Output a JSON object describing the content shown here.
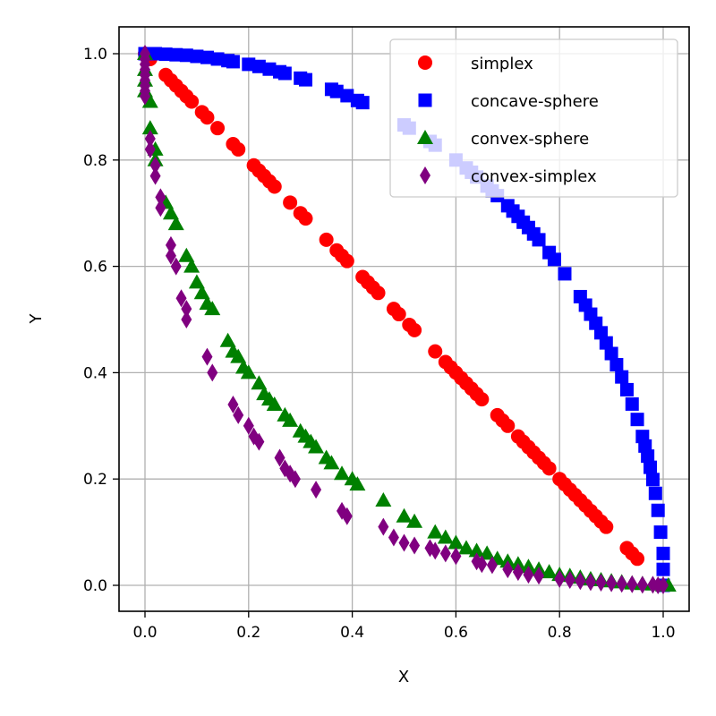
{
  "chart_data": {
    "type": "scatter",
    "title": "",
    "xlabel": "X",
    "ylabel": "Y",
    "xlim": [
      -0.05,
      1.05
    ],
    "ylim": [
      -0.05,
      1.05
    ],
    "grid": true,
    "legend_position": "upper right",
    "xticks": [
      "0.0",
      "0.2",
      "0.4",
      "0.6",
      "0.8",
      "1.0"
    ],
    "yticks": [
      "0.0",
      "0.2",
      "0.4",
      "0.6",
      "0.8",
      "1.0"
    ],
    "series": [
      {
        "name": "simplex",
        "marker": "circle",
        "color": "#ff0000",
        "points": [
          [
            0.0,
            1.0
          ],
          [
            0.01,
            0.99
          ],
          [
            0.04,
            0.96
          ],
          [
            0.05,
            0.95
          ],
          [
            0.06,
            0.94
          ],
          [
            0.07,
            0.93
          ],
          [
            0.08,
            0.92
          ],
          [
            0.09,
            0.91
          ],
          [
            0.11,
            0.89
          ],
          [
            0.12,
            0.88
          ],
          [
            0.14,
            0.86
          ],
          [
            0.17,
            0.83
          ],
          [
            0.18,
            0.82
          ],
          [
            0.21,
            0.79
          ],
          [
            0.22,
            0.78
          ],
          [
            0.23,
            0.77
          ],
          [
            0.24,
            0.76
          ],
          [
            0.25,
            0.75
          ],
          [
            0.28,
            0.72
          ],
          [
            0.3,
            0.7
          ],
          [
            0.31,
            0.69
          ],
          [
            0.35,
            0.65
          ],
          [
            0.37,
            0.63
          ],
          [
            0.38,
            0.62
          ],
          [
            0.39,
            0.61
          ],
          [
            0.42,
            0.58
          ],
          [
            0.43,
            0.57
          ],
          [
            0.44,
            0.56
          ],
          [
            0.45,
            0.55
          ],
          [
            0.48,
            0.52
          ],
          [
            0.49,
            0.51
          ],
          [
            0.51,
            0.49
          ],
          [
            0.52,
            0.48
          ],
          [
            0.56,
            0.44
          ],
          [
            0.58,
            0.42
          ],
          [
            0.59,
            0.41
          ],
          [
            0.6,
            0.4
          ],
          [
            0.61,
            0.39
          ],
          [
            0.62,
            0.38
          ],
          [
            0.63,
            0.37
          ],
          [
            0.64,
            0.36
          ],
          [
            0.65,
            0.35
          ],
          [
            0.68,
            0.32
          ],
          [
            0.69,
            0.31
          ],
          [
            0.7,
            0.3
          ],
          [
            0.72,
            0.28
          ],
          [
            0.73,
            0.27
          ],
          [
            0.74,
            0.26
          ],
          [
            0.75,
            0.25
          ],
          [
            0.76,
            0.24
          ],
          [
            0.77,
            0.23
          ],
          [
            0.78,
            0.22
          ],
          [
            0.8,
            0.2
          ],
          [
            0.81,
            0.19
          ],
          [
            0.82,
            0.18
          ],
          [
            0.83,
            0.17
          ],
          [
            0.84,
            0.16
          ],
          [
            0.85,
            0.15
          ],
          [
            0.86,
            0.14
          ],
          [
            0.87,
            0.13
          ],
          [
            0.88,
            0.12
          ],
          [
            0.89,
            0.11
          ],
          [
            0.93,
            0.07
          ],
          [
            0.94,
            0.06
          ],
          [
            0.95,
            0.05
          ]
        ]
      },
      {
        "name": "concave-sphere",
        "marker": "square",
        "color": "#0000ff",
        "points": [
          [
            0.0,
            1.0
          ],
          [
            0.02,
            1.0
          ],
          [
            0.04,
            0.999
          ],
          [
            0.06,
            0.998
          ],
          [
            0.08,
            0.997
          ],
          [
            0.1,
            0.995
          ],
          [
            0.12,
            0.993
          ],
          [
            0.14,
            0.99
          ],
          [
            0.16,
            0.987
          ],
          [
            0.17,
            0.985
          ],
          [
            0.2,
            0.98
          ],
          [
            0.22,
            0.976
          ],
          [
            0.24,
            0.971
          ],
          [
            0.26,
            0.966
          ],
          [
            0.27,
            0.963
          ],
          [
            0.3,
            0.954
          ],
          [
            0.31,
            0.951
          ],
          [
            0.36,
            0.933
          ],
          [
            0.37,
            0.929
          ],
          [
            0.39,
            0.921
          ],
          [
            0.41,
            0.912
          ],
          [
            0.42,
            0.908
          ],
          [
            0.5,
            0.866
          ],
          [
            0.51,
            0.86
          ],
          [
            0.55,
            0.835
          ],
          [
            0.56,
            0.828
          ],
          [
            0.6,
            0.8
          ],
          [
            0.62,
            0.785
          ],
          [
            0.63,
            0.777
          ],
          [
            0.64,
            0.768
          ],
          [
            0.66,
            0.751
          ],
          [
            0.67,
            0.742
          ],
          [
            0.68,
            0.733
          ],
          [
            0.7,
            0.714
          ],
          [
            0.71,
            0.704
          ],
          [
            0.72,
            0.694
          ],
          [
            0.73,
            0.683
          ],
          [
            0.74,
            0.673
          ],
          [
            0.75,
            0.661
          ],
          [
            0.76,
            0.65
          ],
          [
            0.78,
            0.626
          ],
          [
            0.79,
            0.613
          ],
          [
            0.81,
            0.586
          ],
          [
            0.84,
            0.543
          ],
          [
            0.85,
            0.527
          ],
          [
            0.86,
            0.51
          ],
          [
            0.87,
            0.493
          ],
          [
            0.88,
            0.475
          ],
          [
            0.89,
            0.456
          ],
          [
            0.9,
            0.436
          ],
          [
            0.91,
            0.415
          ],
          [
            0.92,
            0.392
          ],
          [
            0.93,
            0.368
          ],
          [
            0.94,
            0.341
          ],
          [
            0.95,
            0.312
          ],
          [
            0.96,
            0.28
          ],
          [
            0.965,
            0.262
          ],
          [
            0.97,
            0.243
          ],
          [
            0.975,
            0.222
          ],
          [
            0.98,
            0.199
          ],
          [
            0.985,
            0.173
          ],
          [
            0.99,
            0.141
          ],
          [
            0.995,
            0.1
          ],
          [
            1.0,
            0.06
          ],
          [
            1.0,
            0.03
          ],
          [
            1.0,
            0.0
          ]
        ]
      },
      {
        "name": "convex-sphere",
        "marker": "triangle",
        "color": "#008000",
        "points": [
          [
            0.0,
            1.0
          ],
          [
            0.0,
            0.97
          ],
          [
            0.0,
            0.95
          ],
          [
            0.0,
            0.93
          ],
          [
            0.01,
            0.91
          ],
          [
            0.01,
            0.86
          ],
          [
            0.02,
            0.82
          ],
          [
            0.02,
            0.8
          ],
          [
            0.04,
            0.72
          ],
          [
            0.05,
            0.7
          ],
          [
            0.06,
            0.68
          ],
          [
            0.08,
            0.62
          ],
          [
            0.09,
            0.6
          ],
          [
            0.1,
            0.57
          ],
          [
            0.11,
            0.55
          ],
          [
            0.12,
            0.53
          ],
          [
            0.13,
            0.52
          ],
          [
            0.16,
            0.46
          ],
          [
            0.17,
            0.44
          ],
          [
            0.18,
            0.43
          ],
          [
            0.19,
            0.41
          ],
          [
            0.2,
            0.4
          ],
          [
            0.22,
            0.38
          ],
          [
            0.23,
            0.36
          ],
          [
            0.24,
            0.35
          ],
          [
            0.25,
            0.34
          ],
          [
            0.27,
            0.32
          ],
          [
            0.28,
            0.31
          ],
          [
            0.3,
            0.29
          ],
          [
            0.31,
            0.28
          ],
          [
            0.32,
            0.27
          ],
          [
            0.33,
            0.26
          ],
          [
            0.35,
            0.24
          ],
          [
            0.36,
            0.23
          ],
          [
            0.38,
            0.21
          ],
          [
            0.4,
            0.2
          ],
          [
            0.41,
            0.19
          ],
          [
            0.46,
            0.16
          ],
          [
            0.5,
            0.13
          ],
          [
            0.52,
            0.12
          ],
          [
            0.56,
            0.1
          ],
          [
            0.58,
            0.09
          ],
          [
            0.6,
            0.08
          ],
          [
            0.62,
            0.07
          ],
          [
            0.64,
            0.065
          ],
          [
            0.66,
            0.06
          ],
          [
            0.68,
            0.05
          ],
          [
            0.7,
            0.045
          ],
          [
            0.72,
            0.04
          ],
          [
            0.74,
            0.035
          ],
          [
            0.76,
            0.03
          ],
          [
            0.78,
            0.025
          ],
          [
            0.8,
            0.02
          ],
          [
            0.82,
            0.018
          ],
          [
            0.84,
            0.015
          ],
          [
            0.86,
            0.012
          ],
          [
            0.88,
            0.01
          ],
          [
            0.9,
            0.008
          ],
          [
            0.92,
            0.006
          ],
          [
            0.94,
            0.004
          ],
          [
            0.96,
            0.003
          ],
          [
            0.98,
            0.002
          ],
          [
            1.0,
            0.0
          ],
          [
            1.01,
            0.0
          ]
        ]
      },
      {
        "name": "convex-simplex",
        "marker": "diamond",
        "color": "#800080",
        "points": [
          [
            0.0,
            1.0
          ],
          [
            0.0,
            0.99
          ],
          [
            0.0,
            0.98
          ],
          [
            0.0,
            0.97
          ],
          [
            0.0,
            0.96
          ],
          [
            0.0,
            0.95
          ],
          [
            0.0,
            0.94
          ],
          [
            0.0,
            0.93
          ],
          [
            0.0,
            0.92
          ],
          [
            0.01,
            0.84
          ],
          [
            0.01,
            0.82
          ],
          [
            0.02,
            0.79
          ],
          [
            0.02,
            0.77
          ],
          [
            0.03,
            0.73
          ],
          [
            0.03,
            0.71
          ],
          [
            0.05,
            0.64
          ],
          [
            0.05,
            0.62
          ],
          [
            0.06,
            0.6
          ],
          [
            0.07,
            0.54
          ],
          [
            0.08,
            0.52
          ],
          [
            0.08,
            0.5
          ],
          [
            0.12,
            0.43
          ],
          [
            0.13,
            0.4
          ],
          [
            0.17,
            0.34
          ],
          [
            0.18,
            0.32
          ],
          [
            0.2,
            0.3
          ],
          [
            0.21,
            0.28
          ],
          [
            0.22,
            0.27
          ],
          [
            0.26,
            0.24
          ],
          [
            0.27,
            0.22
          ],
          [
            0.28,
            0.21
          ],
          [
            0.29,
            0.2
          ],
          [
            0.33,
            0.18
          ],
          [
            0.38,
            0.14
          ],
          [
            0.39,
            0.13
          ],
          [
            0.46,
            0.11
          ],
          [
            0.48,
            0.09
          ],
          [
            0.5,
            0.08
          ],
          [
            0.52,
            0.075
          ],
          [
            0.55,
            0.07
          ],
          [
            0.56,
            0.065
          ],
          [
            0.58,
            0.06
          ],
          [
            0.6,
            0.055
          ],
          [
            0.64,
            0.045
          ],
          [
            0.65,
            0.04
          ],
          [
            0.67,
            0.038
          ],
          [
            0.7,
            0.03
          ],
          [
            0.72,
            0.025
          ],
          [
            0.74,
            0.02
          ],
          [
            0.76,
            0.018
          ],
          [
            0.8,
            0.012
          ],
          [
            0.82,
            0.01
          ],
          [
            0.84,
            0.008
          ],
          [
            0.86,
            0.006
          ],
          [
            0.88,
            0.005
          ],
          [
            0.9,
            0.004
          ],
          [
            0.92,
            0.003
          ],
          [
            0.94,
            0.002
          ],
          [
            0.96,
            0.001
          ],
          [
            0.98,
            0.001
          ],
          [
            0.99,
            0.0
          ],
          [
            1.0,
            0.0
          ]
        ]
      }
    ]
  },
  "plot": {
    "xlabel": "X",
    "ylabel": "Y"
  }
}
